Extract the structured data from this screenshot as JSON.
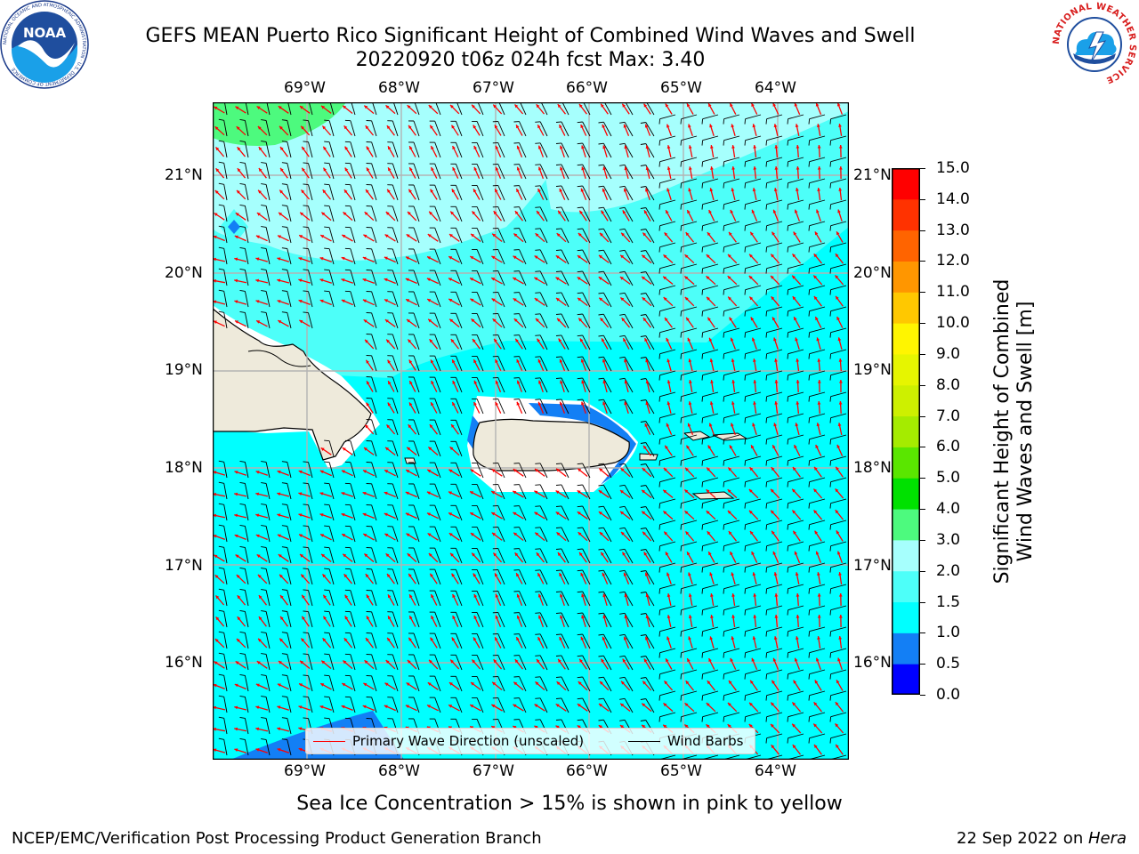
{
  "title": {
    "line1": "GEFS MEAN Puerto Rico Significant Height of Combined Wind Waves and Swell",
    "line2": "20220920 t06z 024h fcst   Max: 3.40"
  },
  "logos": {
    "left": {
      "text": "NOAA",
      "ring_text": "NATIONAL OCEANIC AND ATMOSPHERIC ADMINISTRATION · U.S. DEPARTMENT OF COMMERCE"
    },
    "right": {
      "ring_text": "NATIONAL WEATHER SERVICE"
    }
  },
  "map": {
    "lon_labels": [
      "69°W",
      "68°W",
      "67°W",
      "66°W",
      "65°W",
      "64°W"
    ],
    "lat_labels": [
      "21°N",
      "20°N",
      "19°N",
      "18°N",
      "17°N",
      "16°N"
    ],
    "lon_range": [
      -70.0,
      -63.3
    ],
    "lat_range": [
      15.0,
      21.75
    ],
    "colors": {
      "land": "#eeeadb",
      "coast_zero": "#ffffff",
      "sea_0_5_1_0": "#137ff5",
      "sea_1_0_1_5": "#00ffff",
      "sea_1_5_2_0": "#4dfff9",
      "sea_2_0_3_0": "#a6fffd",
      "sea_3_0_4_0": "#4dfa7e",
      "grid": "#b3b3b3",
      "wave_arrow": "#ff0000",
      "wind_barb": "#000000"
    }
  },
  "legend": {
    "primary_wave_label": "Primary Wave Direction (unscaled)",
    "wind_barbs_label": "Wind Barbs"
  },
  "colorbar": {
    "title_line1": "Significant Height of Combined",
    "title_line2": "Wind Waves and Swell [m]",
    "levels": [
      "0.0",
      "0.5",
      "1.0",
      "1.5",
      "2.0",
      "3.0",
      "4.0",
      "5.0",
      "6.0",
      "7.0",
      "8.0",
      "9.0",
      "10.0",
      "11.0",
      "12.0",
      "13.0",
      "14.0",
      "15.0"
    ],
    "colors": [
      "#0000ff",
      "#137ff5",
      "#00ffff",
      "#4dfff9",
      "#a6fffd",
      "#4dfa7e",
      "#00e100",
      "#5ae600",
      "#a5eb00",
      "#cdf000",
      "#e6f500",
      "#fff500",
      "#ffc800",
      "#ff9600",
      "#ff6400",
      "#ff3200",
      "#ff0000"
    ]
  },
  "sea_ice_note": "Sea Ice Concentration > 15% is shown in pink to yellow",
  "footer": {
    "left": "NCEP/EMC/Verification Post Processing Product Generation Branch",
    "right_prefix": "22 Sep 2022 on ",
    "right_host": "Hera"
  }
}
